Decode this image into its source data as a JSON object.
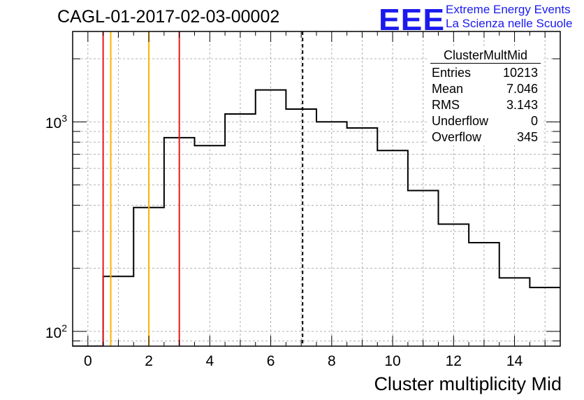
{
  "title": "CAGL-01-2017-02-03-00002",
  "logo": {
    "mark": "EEE",
    "line1": "Extreme Energy Events",
    "line2": "La Scienza nelle Scuole"
  },
  "stats": {
    "title": "ClusterMultMid",
    "rows": [
      {
        "label": "Entries",
        "value": "10213"
      },
      {
        "label": "Mean",
        "value": "7.046"
      },
      {
        "label": "RMS",
        "value": "3.143"
      },
      {
        "label": "Underflow",
        "value": "0"
      },
      {
        "label": "Overflow",
        "value": "345"
      }
    ]
  },
  "chart_data": {
    "type": "histogram",
    "title": "CAGL-01-2017-02-03-00002",
    "xlabel": "Cluster multiplicity Mid",
    "ylabel": "",
    "xlim": [
      -0.5,
      15.5
    ],
    "ylim": [
      85,
      2700
    ],
    "yscale": "log",
    "grid": true,
    "x_ticks": [
      "0",
      "2",
      "4",
      "6",
      "8",
      "10",
      "12",
      "14"
    ],
    "y_ticks": [
      {
        "value": 100,
        "label": "10",
        "exp": "2"
      },
      {
        "value": 1000,
        "label": "10",
        "exp": "3"
      }
    ],
    "bins": [
      {
        "x": 0,
        "y": 0
      },
      {
        "x": 1,
        "y": 183
      },
      {
        "x": 2,
        "y": 390
      },
      {
        "x": 3,
        "y": 840
      },
      {
        "x": 4,
        "y": 770
      },
      {
        "x": 5,
        "y": 1090
      },
      {
        "x": 6,
        "y": 1420
      },
      {
        "x": 7,
        "y": 1150
      },
      {
        "x": 8,
        "y": 1000
      },
      {
        "x": 9,
        "y": 935
      },
      {
        "x": 10,
        "y": 730
      },
      {
        "x": 11,
        "y": 470
      },
      {
        "x": 12,
        "y": 325
      },
      {
        "x": 13,
        "y": 265
      },
      {
        "x": 14,
        "y": 180
      },
      {
        "x": 15,
        "y": 162
      }
    ],
    "vertical_lines": [
      {
        "x": 0.5,
        "color": "#e8181c",
        "style": "solid"
      },
      {
        "x": 0.75,
        "color": "#ffb300",
        "style": "solid"
      },
      {
        "x": 2.0,
        "color": "#ffb300",
        "style": "solid"
      },
      {
        "x": 3.0,
        "color": "#e8181c",
        "style": "solid"
      },
      {
        "x": 7.046,
        "color": "#000000",
        "style": "dashed"
      }
    ],
    "legend": "top-right"
  }
}
